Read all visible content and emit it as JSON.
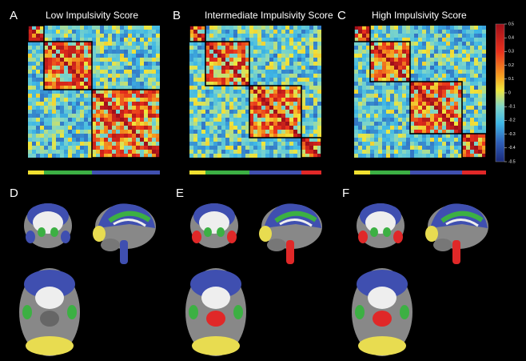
{
  "panels": [
    {
      "letter": "A",
      "title": "Low Impulsivity Score"
    },
    {
      "letter": "B",
      "title": "Intermediate Impulsivity Score"
    },
    {
      "letter": "C",
      "title": "High Impulsivity Score"
    }
  ],
  "colorbar": {
    "ticks": [
      0.5,
      0.4,
      0.3,
      0.2,
      0.1,
      0,
      -0.1,
      -0.2,
      -0.3,
      -0.4,
      -0.5
    ]
  },
  "brain_panels": [
    {
      "letter": "D"
    },
    {
      "letter": "E"
    },
    {
      "letter": "F"
    }
  ]
}
